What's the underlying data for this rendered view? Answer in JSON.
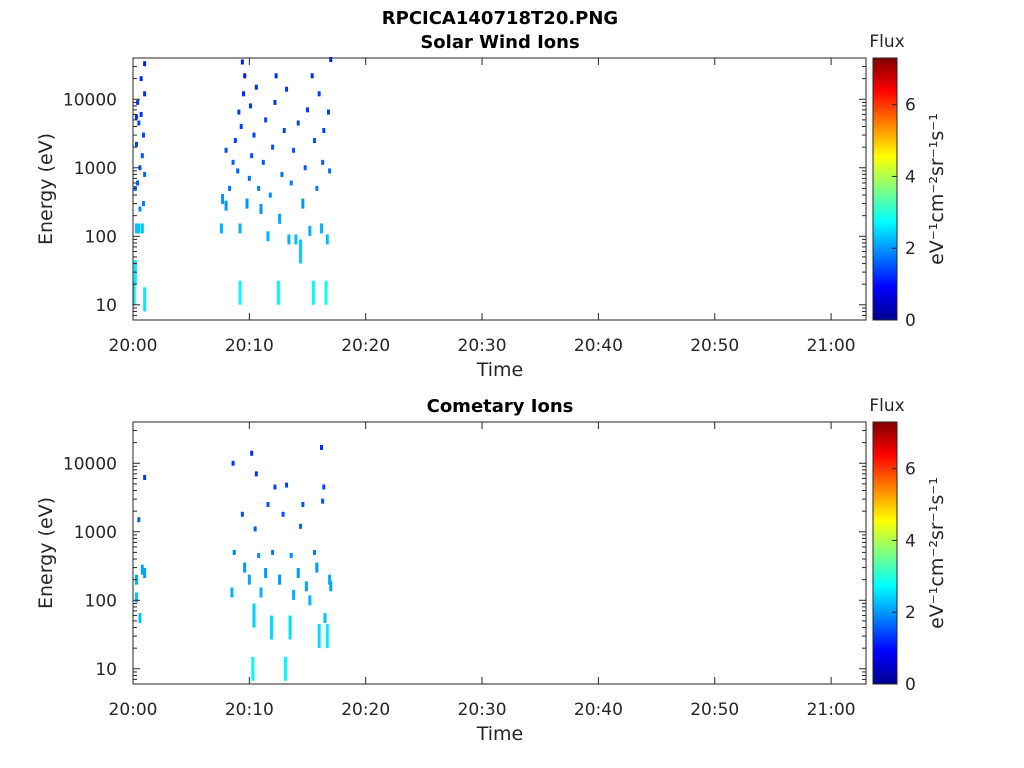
{
  "figure_title": "RPCICA140718T20.PNG",
  "colorbar": {
    "title": "Flux",
    "range": [
      0,
      7.3
    ],
    "ticks": [
      "0",
      "2",
      "4",
      "6"
    ],
    "tick_values": [
      0,
      2,
      4,
      6
    ],
    "units_label": "eV⁻¹cm⁻²sr⁻¹s⁻¹",
    "colormap": "jet"
  },
  "chart_data": [
    {
      "type": "heatmap",
      "title": "Solar Wind Ions",
      "xlabel": "Time",
      "ylabel": "Energy (eV)",
      "yscale": "log",
      "xlim_minutes_after_2000": [
        0,
        63
      ],
      "ylim": [
        6,
        40000
      ],
      "x_ticks": [
        "20:00",
        "20:10",
        "20:20",
        "20:30",
        "20:40",
        "20:50",
        "21:00"
      ],
      "x_tick_minutes": [
        0,
        10,
        20,
        30,
        40,
        50,
        60
      ],
      "y_ticks": [
        "10",
        "100",
        "1000",
        "10000"
      ],
      "y_tick_values": [
        10,
        100,
        1000,
        10000
      ],
      "points_time_minutes_energy_eV_flux": [
        [
          0.1,
          15,
          2.6
        ],
        [
          0.2,
          30,
          2.6
        ],
        [
          0.3,
          130,
          2.3
        ],
        [
          0.5,
          130,
          2.3
        ],
        [
          0.8,
          130,
          2.3
        ],
        [
          1.0,
          12,
          2.6
        ],
        [
          0.9,
          300,
          1.8
        ],
        [
          0.4,
          600,
          1.6
        ],
        [
          0.6,
          1000,
          1.5
        ],
        [
          0.8,
          1500,
          1.5
        ],
        [
          0.3,
          2200,
          1.4
        ],
        [
          0.9,
          3000,
          1.4
        ],
        [
          0.5,
          4500,
          1.4
        ],
        [
          0.7,
          6000,
          1.3
        ],
        [
          0.4,
          9000,
          1.3
        ],
        [
          1.0,
          12000,
          1.2
        ],
        [
          0.2,
          500,
          1.7
        ],
        [
          0.6,
          250,
          1.9
        ],
        [
          1.0,
          800,
          1.6
        ],
        [
          0.7,
          20000,
          1.2
        ],
        [
          1.0,
          33000,
          1.1
        ],
        [
          0.3,
          5500,
          1.3
        ],
        [
          7.6,
          130,
          2.2
        ],
        [
          7.7,
          350,
          2.0
        ],
        [
          8.0,
          280,
          2.0
        ],
        [
          8.3,
          500,
          1.7
        ],
        [
          8.6,
          1200,
          1.6
        ],
        [
          8.0,
          1800,
          1.5
        ],
        [
          8.8,
          2500,
          1.4
        ],
        [
          9.0,
          900,
          1.6
        ],
        [
          9.3,
          4000,
          1.4
        ],
        [
          9.1,
          6500,
          1.3
        ],
        [
          9.5,
          12000,
          1.2
        ],
        [
          9.6,
          22000,
          1.1
        ],
        [
          9.4,
          35000,
          1.1
        ],
        [
          9.2,
          15,
          2.7
        ],
        [
          9.2,
          130,
          2.2
        ],
        [
          9.8,
          300,
          2.0
        ],
        [
          10.0,
          700,
          1.7
        ],
        [
          10.2,
          1500,
          1.5
        ],
        [
          10.4,
          3000,
          1.4
        ],
        [
          10.1,
          8000,
          1.3
        ],
        [
          10.6,
          15000,
          1.2
        ],
        [
          10.8,
          500,
          1.8
        ],
        [
          11.0,
          250,
          2.0
        ],
        [
          11.2,
          1200,
          1.6
        ],
        [
          11.4,
          5000,
          1.4
        ],
        [
          11.6,
          100,
          2.2
        ],
        [
          11.8,
          400,
          1.9
        ],
        [
          12.0,
          2000,
          1.5
        ],
        [
          12.2,
          9000,
          1.3
        ],
        [
          12.3,
          22000,
          1.2
        ],
        [
          12.5,
          15,
          2.7
        ],
        [
          12.6,
          180,
          2.1
        ],
        [
          12.8,
          800,
          1.7
        ],
        [
          13.0,
          3500,
          1.4
        ],
        [
          13.2,
          14000,
          1.3
        ],
        [
          13.4,
          90,
          2.2
        ],
        [
          13.6,
          600,
          1.8
        ],
        [
          13.8,
          1800,
          1.5
        ],
        [
          14.0,
          90,
          2.3
        ],
        [
          14.2,
          4500,
          1.4
        ],
        [
          14.4,
          60,
          2.4
        ],
        [
          14.6,
          300,
          2.0
        ],
        [
          14.8,
          1000,
          1.6
        ],
        [
          15.0,
          7000,
          1.3
        ],
        [
          15.2,
          120,
          2.2
        ],
        [
          15.5,
          15,
          2.7
        ],
        [
          15.4,
          22000,
          1.2
        ],
        [
          15.6,
          2500,
          1.5
        ],
        [
          15.8,
          500,
          1.8
        ],
        [
          16.0,
          12000,
          1.3
        ],
        [
          16.2,
          130,
          2.2
        ],
        [
          16.3,
          1200,
          1.6
        ],
        [
          16.4,
          3500,
          1.4
        ],
        [
          16.6,
          15,
          2.8
        ],
        [
          16.7,
          90,
          2.3
        ],
        [
          16.8,
          6500,
          1.3
        ],
        [
          16.9,
          900,
          1.7
        ],
        [
          17.0,
          38000,
          1.1
        ]
      ]
    },
    {
      "type": "heatmap",
      "title": "Cometary Ions",
      "xlabel": "Time",
      "ylabel": "Energy (eV)",
      "yscale": "log",
      "xlim_minutes_after_2000": [
        0,
        63
      ],
      "ylim": [
        6,
        40000
      ],
      "x_ticks": [
        "20:00",
        "20:10",
        "20:20",
        "20:30",
        "20:40",
        "20:50",
        "21:00"
      ],
      "x_tick_minutes": [
        0,
        10,
        20,
        30,
        40,
        50,
        60
      ],
      "y_ticks": [
        "10",
        "100",
        "1000",
        "10000"
      ],
      "y_tick_values": [
        10,
        100,
        1000,
        10000
      ],
      "points_time_minutes_energy_eV_flux": [
        [
          0.3,
          200,
          2.2
        ],
        [
          0.3,
          110,
          2.3
        ],
        [
          0.6,
          55,
          2.3
        ],
        [
          0.8,
          280,
          2.1
        ],
        [
          0.5,
          1500,
          1.6
        ],
        [
          1.0,
          6200,
          1.3
        ],
        [
          1.0,
          250,
          2.1
        ],
        [
          8.5,
          130,
          2.2
        ],
        [
          8.7,
          500,
          1.8
        ],
        [
          8.6,
          10000,
          1.3
        ],
        [
          9.4,
          1800,
          1.5
        ],
        [
          9.6,
          300,
          2.0
        ],
        [
          10.0,
          200,
          2.1
        ],
        [
          10.2,
          14000,
          1.2
        ],
        [
          10.3,
          10,
          2.7
        ],
        [
          10.4,
          60,
          2.4
        ],
        [
          10.5,
          1100,
          1.6
        ],
        [
          10.6,
          7000,
          1.3
        ],
        [
          10.8,
          450,
          1.9
        ],
        [
          11.0,
          130,
          2.2
        ],
        [
          11.4,
          250,
          2.0
        ],
        [
          11.6,
          2500,
          1.5
        ],
        [
          11.9,
          40,
          2.5
        ],
        [
          12.0,
          500,
          1.8
        ],
        [
          12.2,
          4500,
          1.4
        ],
        [
          12.6,
          200,
          2.0
        ],
        [
          12.9,
          1800,
          1.5
        ],
        [
          13.1,
          10,
          2.7
        ],
        [
          13.2,
          4800,
          1.4
        ],
        [
          13.5,
          40,
          2.5
        ],
        [
          13.6,
          450,
          1.9
        ],
        [
          13.8,
          120,
          2.2
        ],
        [
          14.2,
          250,
          2.0
        ],
        [
          14.4,
          1200,
          1.6
        ],
        [
          14.6,
          2500,
          1.5
        ],
        [
          14.9,
          160,
          2.1
        ],
        [
          15.2,
          100,
          2.2
        ],
        [
          15.6,
          500,
          1.8
        ],
        [
          15.8,
          300,
          2.0
        ],
        [
          16.0,
          30,
          2.5
        ],
        [
          16.2,
          17000,
          1.2
        ],
        [
          16.3,
          2800,
          1.5
        ],
        [
          16.4,
          4500,
          1.4
        ],
        [
          16.5,
          55,
          2.3
        ],
        [
          16.7,
          30,
          2.6
        ],
        [
          16.9,
          200,
          2.1
        ],
        [
          17.0,
          160,
          2.1
        ]
      ]
    }
  ]
}
